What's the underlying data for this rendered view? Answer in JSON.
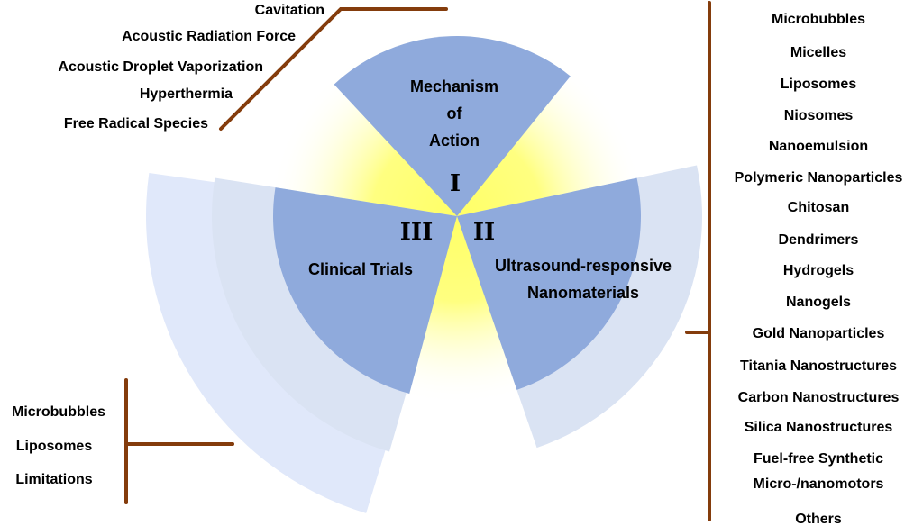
{
  "colors": {
    "sector_core": "#8FAADC",
    "ring_middle": "#DAE3F3",
    "ring_outer": "#E0E8FA",
    "glow": "#FFFF66",
    "bracket": "#843C0C"
  },
  "sectors": [
    {
      "numeral": "I",
      "title_lines": [
        "Mechanism",
        "of",
        "Action"
      ]
    },
    {
      "numeral": "II",
      "title_lines": [
        "Ultrasound-responsive",
        "Nanomaterials"
      ]
    },
    {
      "numeral": "III",
      "title_lines": [
        "Clinical Trials"
      ]
    }
  ],
  "mechanism_items": [
    "Cavitation",
    "Acoustic Radiation Force",
    "Acoustic Droplet Vaporization",
    "Hyperthermia",
    "Free Radical Species"
  ],
  "nanomaterial_items": [
    "Microbubbles",
    "Micelles",
    "Liposomes",
    "Niosomes",
    "Nanoemulsion",
    "Polymeric Nanoparticles",
    "Chitosan",
    "Dendrimers",
    "Hydrogels",
    "Nanogels",
    "Gold Nanoparticles",
    "Titania Nanostructures",
    "Carbon Nanostructures",
    "Silica Nanostructures",
    "Fuel-free Synthetic",
    "Micro-/nanomotors",
    "Others"
  ],
  "clinical_items": [
    "Microbubbles",
    "Liposomes",
    "Limitations"
  ]
}
